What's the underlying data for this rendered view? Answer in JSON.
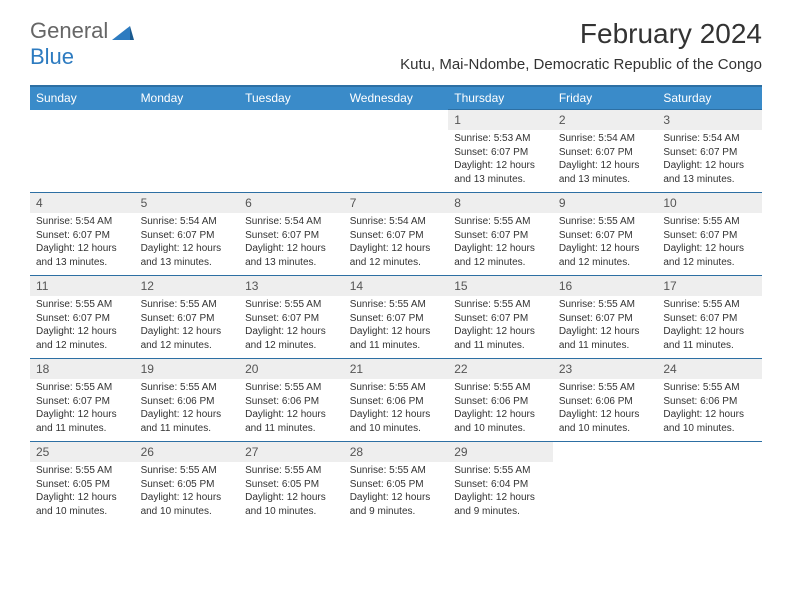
{
  "logo": {
    "text1": "General",
    "text2": "Blue"
  },
  "title": "February 2024",
  "subtitle": "Kutu, Mai-Ndombe, Democratic Republic of the Congo",
  "colors": {
    "header_bg": "#3a8bc9",
    "header_border": "#2d6fa3",
    "daynum_bg": "#eeeeee"
  },
  "weekdays": [
    "Sunday",
    "Monday",
    "Tuesday",
    "Wednesday",
    "Thursday",
    "Friday",
    "Saturday"
  ],
  "weeks": [
    [
      null,
      null,
      null,
      null,
      {
        "n": "1",
        "sr": "Sunrise: 5:53 AM",
        "ss": "Sunset: 6:07 PM",
        "dl": "Daylight: 12 hours and 13 minutes."
      },
      {
        "n": "2",
        "sr": "Sunrise: 5:54 AM",
        "ss": "Sunset: 6:07 PM",
        "dl": "Daylight: 12 hours and 13 minutes."
      },
      {
        "n": "3",
        "sr": "Sunrise: 5:54 AM",
        "ss": "Sunset: 6:07 PM",
        "dl": "Daylight: 12 hours and 13 minutes."
      }
    ],
    [
      {
        "n": "4",
        "sr": "Sunrise: 5:54 AM",
        "ss": "Sunset: 6:07 PM",
        "dl": "Daylight: 12 hours and 13 minutes."
      },
      {
        "n": "5",
        "sr": "Sunrise: 5:54 AM",
        "ss": "Sunset: 6:07 PM",
        "dl": "Daylight: 12 hours and 13 minutes."
      },
      {
        "n": "6",
        "sr": "Sunrise: 5:54 AM",
        "ss": "Sunset: 6:07 PM",
        "dl": "Daylight: 12 hours and 13 minutes."
      },
      {
        "n": "7",
        "sr": "Sunrise: 5:54 AM",
        "ss": "Sunset: 6:07 PM",
        "dl": "Daylight: 12 hours and 12 minutes."
      },
      {
        "n": "8",
        "sr": "Sunrise: 5:55 AM",
        "ss": "Sunset: 6:07 PM",
        "dl": "Daylight: 12 hours and 12 minutes."
      },
      {
        "n": "9",
        "sr": "Sunrise: 5:55 AM",
        "ss": "Sunset: 6:07 PM",
        "dl": "Daylight: 12 hours and 12 minutes."
      },
      {
        "n": "10",
        "sr": "Sunrise: 5:55 AM",
        "ss": "Sunset: 6:07 PM",
        "dl": "Daylight: 12 hours and 12 minutes."
      }
    ],
    [
      {
        "n": "11",
        "sr": "Sunrise: 5:55 AM",
        "ss": "Sunset: 6:07 PM",
        "dl": "Daylight: 12 hours and 12 minutes."
      },
      {
        "n": "12",
        "sr": "Sunrise: 5:55 AM",
        "ss": "Sunset: 6:07 PM",
        "dl": "Daylight: 12 hours and 12 minutes."
      },
      {
        "n": "13",
        "sr": "Sunrise: 5:55 AM",
        "ss": "Sunset: 6:07 PM",
        "dl": "Daylight: 12 hours and 12 minutes."
      },
      {
        "n": "14",
        "sr": "Sunrise: 5:55 AM",
        "ss": "Sunset: 6:07 PM",
        "dl": "Daylight: 12 hours and 11 minutes."
      },
      {
        "n": "15",
        "sr": "Sunrise: 5:55 AM",
        "ss": "Sunset: 6:07 PM",
        "dl": "Daylight: 12 hours and 11 minutes."
      },
      {
        "n": "16",
        "sr": "Sunrise: 5:55 AM",
        "ss": "Sunset: 6:07 PM",
        "dl": "Daylight: 12 hours and 11 minutes."
      },
      {
        "n": "17",
        "sr": "Sunrise: 5:55 AM",
        "ss": "Sunset: 6:07 PM",
        "dl": "Daylight: 12 hours and 11 minutes."
      }
    ],
    [
      {
        "n": "18",
        "sr": "Sunrise: 5:55 AM",
        "ss": "Sunset: 6:07 PM",
        "dl": "Daylight: 12 hours and 11 minutes."
      },
      {
        "n": "19",
        "sr": "Sunrise: 5:55 AM",
        "ss": "Sunset: 6:06 PM",
        "dl": "Daylight: 12 hours and 11 minutes."
      },
      {
        "n": "20",
        "sr": "Sunrise: 5:55 AM",
        "ss": "Sunset: 6:06 PM",
        "dl": "Daylight: 12 hours and 11 minutes."
      },
      {
        "n": "21",
        "sr": "Sunrise: 5:55 AM",
        "ss": "Sunset: 6:06 PM",
        "dl": "Daylight: 12 hours and 10 minutes."
      },
      {
        "n": "22",
        "sr": "Sunrise: 5:55 AM",
        "ss": "Sunset: 6:06 PM",
        "dl": "Daylight: 12 hours and 10 minutes."
      },
      {
        "n": "23",
        "sr": "Sunrise: 5:55 AM",
        "ss": "Sunset: 6:06 PM",
        "dl": "Daylight: 12 hours and 10 minutes."
      },
      {
        "n": "24",
        "sr": "Sunrise: 5:55 AM",
        "ss": "Sunset: 6:06 PM",
        "dl": "Daylight: 12 hours and 10 minutes."
      }
    ],
    [
      {
        "n": "25",
        "sr": "Sunrise: 5:55 AM",
        "ss": "Sunset: 6:05 PM",
        "dl": "Daylight: 12 hours and 10 minutes."
      },
      {
        "n": "26",
        "sr": "Sunrise: 5:55 AM",
        "ss": "Sunset: 6:05 PM",
        "dl": "Daylight: 12 hours and 10 minutes."
      },
      {
        "n": "27",
        "sr": "Sunrise: 5:55 AM",
        "ss": "Sunset: 6:05 PM",
        "dl": "Daylight: 12 hours and 10 minutes."
      },
      {
        "n": "28",
        "sr": "Sunrise: 5:55 AM",
        "ss": "Sunset: 6:05 PM",
        "dl": "Daylight: 12 hours and 9 minutes."
      },
      {
        "n": "29",
        "sr": "Sunrise: 5:55 AM",
        "ss": "Sunset: 6:04 PM",
        "dl": "Daylight: 12 hours and 9 minutes."
      },
      null,
      null
    ]
  ]
}
